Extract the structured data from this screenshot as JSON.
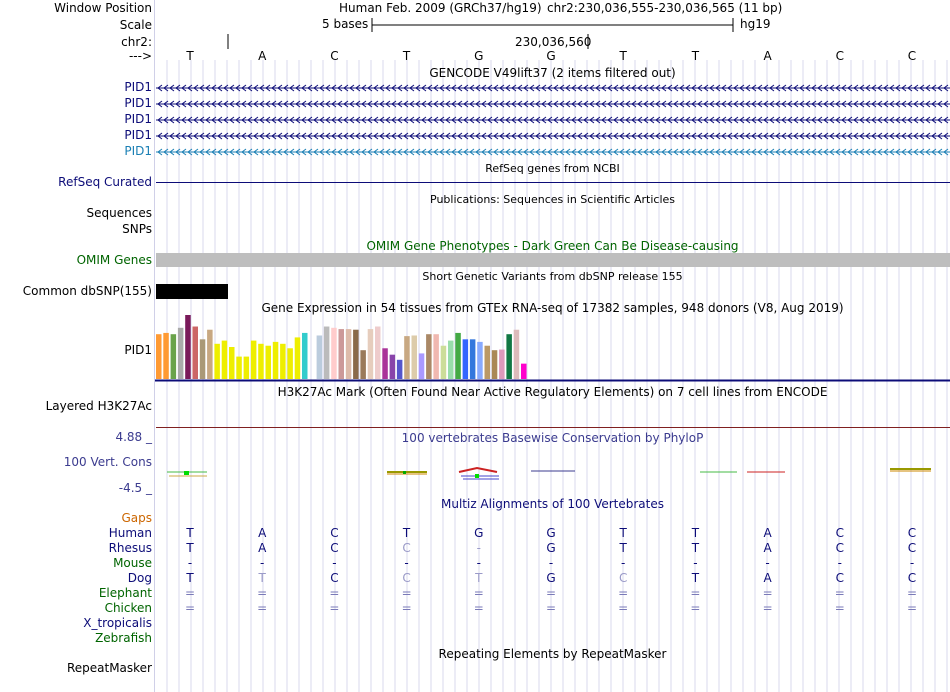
{
  "labels": {
    "window_position": "Window Position",
    "scale": "Scale",
    "chr": "chr2:",
    "arrow": "--->",
    "refseq": "RefSeq Curated",
    "sequences": "Sequences",
    "snps": "SNPs",
    "omim_genes": "OMIM Genes",
    "common_dbsnp": "Common dbSNP(155)",
    "gtex_pid1": "PID1",
    "h3k27ac": "Layered H3K27Ac",
    "cons_top": "4.88 _",
    "cons_label": "100 Vert. Cons",
    "cons_bottom": "-4.5 _",
    "gaps": "Gaps"
  },
  "header": {
    "assembly": "Human Feb. 2009 (GRCh37/hg19)",
    "position": "chr2:230,036,555-230,036,565 (11 bp)",
    "scale_text": "5 bases",
    "scale_db": "hg19",
    "coord": "230,036,560"
  },
  "sequence": [
    "T",
    "A",
    "C",
    "T",
    "G",
    "G",
    "T",
    "T",
    "A",
    "C",
    "C"
  ],
  "gencode": {
    "title": "GENCODE V49lift37 (2 items filtered out)",
    "genes": [
      {
        "name": "PID1",
        "color": "#0c0c78"
      },
      {
        "name": "PID1",
        "color": "#0c0c78"
      },
      {
        "name": "PID1",
        "color": "#0c0c78"
      },
      {
        "name": "PID1",
        "color": "#0c0c78"
      },
      {
        "name": "PID1",
        "color": "#1a7fb4"
      }
    ]
  },
  "track_titles": {
    "refseq": "RefSeq genes from NCBI",
    "publications": "Publications: Sequences in Scientific Articles",
    "omim": "OMIM Gene Phenotypes - Dark Green Can Be Disease-causing",
    "dbsnp": "Short Genetic Variants from dbSNP release 155",
    "gtex": "Gene Expression in 54 tissues from GTEx RNA-seq of 17382 samples, 948 donors (V8, Aug 2019)",
    "h3k27ac": "H3K27Ac Mark (Often Found Near Active Regulatory Elements) on 7 cell lines from ENCODE",
    "conservation": "100 vertebrates Basewise Conservation by PhyloP",
    "multiz": "Multiz Alignments of 100 Vertebrates",
    "repeatmasker": "Repeating Elements by RepeatMasker"
  },
  "gtex_bars": [
    {
      "v": 0.7,
      "c": "#ff9a33"
    },
    {
      "v": 0.72,
      "c": "#ff9a33"
    },
    {
      "v": 0.7,
      "c": "#6aa34a"
    },
    {
      "v": 0.8,
      "c": "#aaaaaa"
    },
    {
      "v": 1.0,
      "c": "#7a1a5a"
    },
    {
      "v": 0.82,
      "c": "#cc6666"
    },
    {
      "v": 0.62,
      "c": "#aa9977"
    },
    {
      "v": 0.77,
      "c": "#c8a882"
    },
    {
      "v": 0.55,
      "c": "#eeee00"
    },
    {
      "v": 0.6,
      "c": "#eeee00"
    },
    {
      "v": 0.5,
      "c": "#eeee00"
    },
    {
      "v": 0.35,
      "c": "#eeee00"
    },
    {
      "v": 0.35,
      "c": "#eeee00"
    },
    {
      "v": 0.6,
      "c": "#eeee00"
    },
    {
      "v": 0.55,
      "c": "#eeee00"
    },
    {
      "v": 0.52,
      "c": "#eeee00"
    },
    {
      "v": 0.58,
      "c": "#eeee00"
    },
    {
      "v": 0.55,
      "c": "#eeee00"
    },
    {
      "v": 0.48,
      "c": "#eeee00"
    },
    {
      "v": 0.65,
      "c": "#eeee00"
    },
    {
      "v": 0.72,
      "c": "#33cccc"
    },
    {
      "v": 0,
      "c": "#ffffff"
    },
    {
      "v": 0.68,
      "c": "#bbccdd"
    },
    {
      "v": 0.82,
      "c": "#bbbbbb"
    },
    {
      "v": 0.8,
      "c": "#ffcccc"
    },
    {
      "v": 0.78,
      "c": "#cc9999"
    },
    {
      "v": 0.78,
      "c": "#ddbbaa"
    },
    {
      "v": 0.77,
      "c": "#8a6a4a"
    },
    {
      "v": 0.45,
      "c": "#9a7a5a"
    },
    {
      "v": 0.78,
      "c": "#e6cdbd"
    },
    {
      "v": 0.82,
      "c": "#eecccc"
    },
    {
      "v": 0.48,
      "c": "#aa3399"
    },
    {
      "v": 0.38,
      "c": "#8844aa"
    },
    {
      "v": 0.3,
      "c": "#5555cc"
    },
    {
      "v": 0.67,
      "c": "#c8a882"
    },
    {
      "v": 0.68,
      "c": "#ddccaa"
    },
    {
      "v": 0.4,
      "c": "#aa99ff"
    },
    {
      "v": 0.7,
      "c": "#aa8866"
    },
    {
      "v": 0.7,
      "c": "#f0b8b0"
    },
    {
      "v": 0.52,
      "c": "#ccdd99"
    },
    {
      "v": 0.6,
      "c": "#99ddaa"
    },
    {
      "v": 0.72,
      "c": "#44aa44"
    },
    {
      "v": 0.62,
      "c": "#3366ff"
    },
    {
      "v": 0.62,
      "c": "#3377dd"
    },
    {
      "v": 0.58,
      "c": "#88aaff"
    },
    {
      "v": 0.52,
      "c": "#bb9966"
    },
    {
      "v": 0.45,
      "c": "#aa8855"
    },
    {
      "v": 0.46,
      "c": "#dd99bb"
    },
    {
      "v": 0.7,
      "c": "#117744"
    },
    {
      "v": 0.77,
      "c": "#ddbbbb"
    },
    {
      "v": 0.24,
      "c": "#ff00cc"
    }
  ],
  "species": [
    {
      "name": "Human",
      "color": "#0c0c78",
      "bases": [
        "T",
        "A",
        "C",
        "T",
        "G",
        "G",
        "T",
        "T",
        "A",
        "C",
        "C"
      ],
      "styles": [
        0,
        0,
        0,
        0,
        0,
        0,
        0,
        0,
        0,
        0,
        0
      ]
    },
    {
      "name": "Rhesus",
      "color": "#0c0c78",
      "bases": [
        "T",
        "A",
        "C",
        "C",
        "-",
        "G",
        "T",
        "T",
        "A",
        "C",
        "C"
      ],
      "styles": [
        0,
        0,
        0,
        1,
        1,
        0,
        0,
        0,
        0,
        0,
        0
      ]
    },
    {
      "name": "Mouse",
      "color": "#006400",
      "bases": [
        "-",
        "-",
        "-",
        "-",
        "-",
        "-",
        "-",
        "-",
        "-",
        "-",
        "-"
      ],
      "styles": [
        0,
        0,
        0,
        0,
        0,
        0,
        0,
        0,
        0,
        0,
        0
      ]
    },
    {
      "name": "Dog",
      "color": "#0c0c78",
      "bases": [
        "T",
        "T",
        "C",
        "C",
        "T",
        "G",
        "C",
        "T",
        "A",
        "C",
        "C"
      ],
      "styles": [
        0,
        1,
        0,
        1,
        1,
        0,
        1,
        0,
        0,
        0,
        0
      ]
    },
    {
      "name": "Elephant",
      "color": "#006400",
      "bases": [
        "=",
        "=",
        "=",
        "=",
        "=",
        "=",
        "=",
        "=",
        "=",
        "=",
        "="
      ],
      "styles": [
        2,
        2,
        2,
        2,
        2,
        2,
        2,
        2,
        2,
        2,
        2
      ]
    },
    {
      "name": "Chicken",
      "color": "#006400",
      "bases": [
        "=",
        "=",
        "=",
        "=",
        "=",
        "=",
        "=",
        "=",
        "=",
        "=",
        "="
      ],
      "styles": [
        2,
        2,
        2,
        2,
        2,
        2,
        2,
        2,
        2,
        2,
        2
      ]
    },
    {
      "name": "X_tropicalis",
      "color": "#0c0c78",
      "bases": [],
      "styles": []
    },
    {
      "name": "Zebrafish",
      "color": "#006400",
      "bases": [],
      "styles": []
    }
  ],
  "repeatmasker_label": "RepeatMasker",
  "colors": {
    "gene": "#0c0c78",
    "omim_label": "#006400",
    "gaps": "#cc6600",
    "conservation": "#3b3b8f",
    "h3k27ac_line": "#802020",
    "gtex_line": "#0c0c78",
    "grid": "#d8d8ee"
  }
}
